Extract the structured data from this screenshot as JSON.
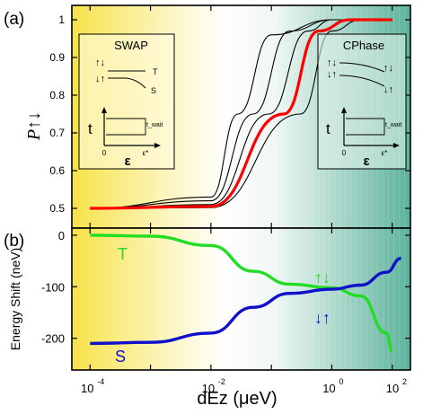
{
  "chart_data": [
    {
      "panel_label": "(a)",
      "type": "line",
      "ylabel": "P↑↓",
      "xscale": "log",
      "xlim": [
        5e-05,
        20
      ],
      "ylim": [
        0.5,
        1.0
      ],
      "yticks": [
        "0.5",
        "0.6",
        "0.7",
        "0.8",
        "0.9",
        "1"
      ],
      "background": "gradient from yellow (left) through white to teal (right)",
      "series": [
        {
          "color": "#000000",
          "values_note": "sigmoid, midpoint ~0.028",
          "x": [
            0.0001,
            0.01,
            0.028,
            0.1,
            1,
            10
          ],
          "y": [
            0.5,
            0.53,
            0.75,
            0.96,
            1.0,
            1.0
          ]
        },
        {
          "color": "#000000",
          "values_note": "sigmoid, midpoint ~0.05",
          "x": [
            0.0001,
            0.01,
            0.05,
            0.2,
            1,
            10
          ],
          "y": [
            0.5,
            0.52,
            0.75,
            0.97,
            1.0,
            1.0
          ]
        },
        {
          "color": "#000000",
          "values_note": "sigmoid, midpoint ~0.09",
          "x": [
            0.0001,
            0.01,
            0.09,
            0.4,
            1,
            10
          ],
          "y": [
            0.5,
            0.51,
            0.75,
            0.97,
            1.0,
            1.0
          ]
        },
        {
          "color": "#ff0000",
          "values_note": "sigmoid, midpoint ~0.16 (highlighted)",
          "x": [
            0.0001,
            0.01,
            0.16,
            0.6,
            2,
            10
          ],
          "y": [
            0.5,
            0.505,
            0.75,
            0.97,
            1.0,
            1.0
          ]
        },
        {
          "color": "#000000",
          "values_note": "sigmoid, midpoint ~0.3",
          "x": [
            0.0001,
            0.01,
            0.3,
            1,
            3,
            10
          ],
          "y": [
            0.5,
            0.502,
            0.75,
            0.97,
            1.0,
            1.0
          ]
        }
      ],
      "insets": [
        {
          "title": "SWAP",
          "states_top": [
            "↑↓",
            "↓↑"
          ],
          "level_labels": [
            "T",
            "S"
          ],
          "t_label": "t",
          "x_label": "ε",
          "x_ticks": [
            "0",
            "ε*"
          ],
          "pulse_label": "t_wait"
        },
        {
          "title": "CPhase",
          "states_left": [
            "↑↓",
            "↓↑"
          ],
          "states_right": [
            "↑↓",
            "↓↑"
          ],
          "t_label": "t",
          "x_label": "ε",
          "x_ticks": [
            "0",
            "ε*"
          ],
          "pulse_label": "t_wait"
        }
      ]
    },
    {
      "panel_label": "(b)",
      "type": "line",
      "ylabel": "Energy Shift (neV)",
      "xlabel": "dEz (μeV)",
      "xscale": "log",
      "xlim": [
        5e-05,
        20
      ],
      "ylim": [
        -225,
        12
      ],
      "yticks": [
        "0",
        "-100",
        "-200"
      ],
      "xticks": [
        "10",
        "10",
        "10",
        "10"
      ],
      "xtick_exponents": [
        "-4",
        "-2",
        "0",
        "2"
      ],
      "series": [
        {
          "name": "T",
          "color": "#22dd22",
          "x": [
            0.0001,
            0.001,
            0.01,
            0.05,
            0.2,
            1,
            3,
            8,
            10
          ],
          "y": [
            0,
            -2,
            -20,
            -70,
            -95,
            -102,
            -118,
            -190,
            -225
          ]
        },
        {
          "name": "S",
          "color": "#1010cc",
          "x": [
            0.0001,
            0.001,
            0.01,
            0.05,
            0.2,
            1,
            3,
            8,
            14
          ],
          "y": [
            -210,
            -208,
            -190,
            -140,
            -113,
            -105,
            -97,
            -72,
            -45
          ]
        }
      ],
      "annotations": [
        {
          "text": "T",
          "color": "#22dd22"
        },
        {
          "text": "S",
          "color": "#1010cc"
        },
        {
          "text": "↑↓",
          "color": "#22dd22"
        },
        {
          "text": "↓↑",
          "color": "#1010cc"
        }
      ]
    }
  ]
}
